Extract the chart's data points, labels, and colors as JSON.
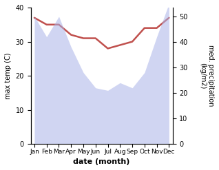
{
  "months": [
    "Jan",
    "Feb",
    "Mar",
    "Apr",
    "May",
    "Jun",
    "Jul",
    "Aug",
    "Sep",
    "Oct",
    "Nov",
    "Dec"
  ],
  "x": [
    0,
    1,
    2,
    3,
    4,
    5,
    6,
    7,
    8,
    9,
    10,
    11
  ],
  "precipitation": [
    50,
    42,
    50,
    38,
    28,
    22,
    21,
    24,
    22,
    28,
    42,
    55
  ],
  "temperature": [
    37,
    35,
    35,
    32,
    31,
    31,
    28,
    29,
    30,
    34,
    34,
    37
  ],
  "precip_color": "#aab4e8",
  "temp_line_color": "#c0504d",
  "ylabel_left": "max temp (C)",
  "ylabel_right": "med. precipitation\n(kg/m2)",
  "xlabel": "date (month)",
  "ylim_left": [
    0,
    40
  ],
  "ylim_right": [
    0,
    53.5
  ],
  "yticks_left": [
    0,
    10,
    20,
    30,
    40
  ],
  "yticks_right": [
    0,
    10,
    20,
    30,
    40,
    50
  ],
  "fill_alpha": 0.55
}
